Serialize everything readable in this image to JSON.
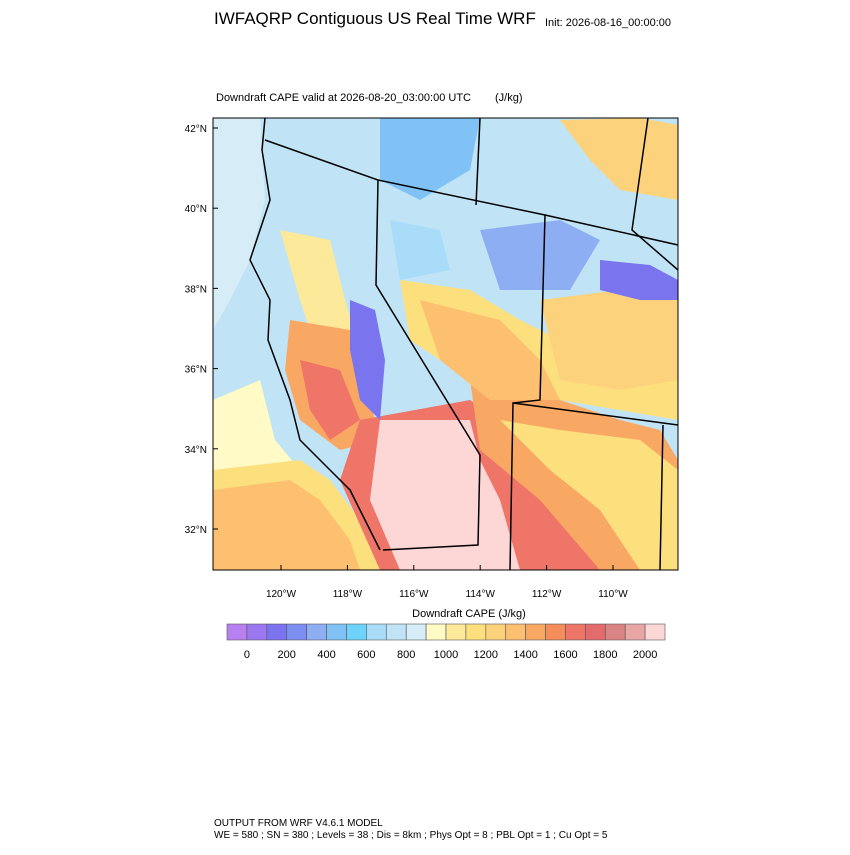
{
  "title": "IWFAQRP Contiguous US Real Time WRF",
  "init": "Init: 2026-08-16_00:00:00",
  "subtitle": "Downdraft CAPE valid at 2026-08-20_03:00:00 UTC",
  "units": "(J/kg)",
  "map": {
    "lat_ticks": [
      {
        "value": 32,
        "label": "32°N"
      },
      {
        "value": 34,
        "label": "34°N"
      },
      {
        "value": 36,
        "label": "36°N"
      },
      {
        "value": 38,
        "label": "38°N"
      },
      {
        "value": 40,
        "label": "40°N"
      },
      {
        "value": 42,
        "label": "42°N"
      }
    ],
    "lon_ticks": [
      {
        "value": -120,
        "label": "120°W"
      },
      {
        "value": -118,
        "label": "118°W"
      },
      {
        "value": -116,
        "label": "116°W"
      },
      {
        "value": -114,
        "label": "114°W"
      },
      {
        "value": -112,
        "label": "112°W"
      },
      {
        "value": -110,
        "label": "110°W"
      }
    ]
  },
  "colorbar": {
    "title": "Downdraft CAPE  (J/kg)",
    "ticks": [
      0,
      200,
      400,
      600,
      800,
      1000,
      1200,
      1400,
      1600,
      1800,
      2000
    ],
    "colors": [
      "#b87fef",
      "#9c78f0",
      "#7a74ef",
      "#7c8ef0",
      "#8eaef3",
      "#80c2f5",
      "#6dd3f8",
      "#a8dcf8",
      "#c0e4f6",
      "#d6ecf6",
      "#fffac6",
      "#fde99a",
      "#fde07e",
      "#fdd27c",
      "#fcc070",
      "#f9a864",
      "#f38e5a",
      "#ef7569",
      "#e46b6c",
      "#d98585",
      "#e9a6a6",
      "#fdd6d6"
    ]
  },
  "footer": {
    "line1": "OUTPUT FROM WRF V4.6.1 MODEL",
    "line2": "WE = 580 ; SN = 380 ; Levels = 38 ; Dis = 8km ; Phys Opt = 8 ; PBL Opt = 1 ; Cu Opt = 5"
  }
}
